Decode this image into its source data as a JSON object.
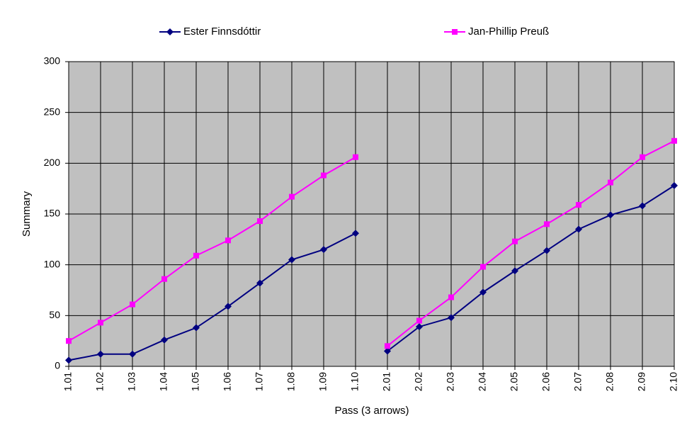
{
  "chart_data": {
    "type": "line",
    "x_label": "Pass (3 arrows)",
    "y_label": "Summary",
    "categories": [
      "1.01",
      "1.02",
      "1.03",
      "1.04",
      "1.05",
      "1.06",
      "1.07",
      "1.08",
      "1.09",
      "1.10",
      "2.01",
      "2.02",
      "2.03",
      "2.04",
      "2.05",
      "2.06",
      "2.07",
      "2.08",
      "2.09",
      "2.10"
    ],
    "segments": [
      10,
      10
    ],
    "series": [
      {
        "name": "Ester Finnsdóttir",
        "color": "#000080",
        "marker": "diamond",
        "values": [
          6,
          12,
          12,
          26,
          38,
          59,
          82,
          105,
          115,
          131,
          15,
          39,
          48,
          73,
          94,
          114,
          135,
          149,
          158,
          178
        ]
      },
      {
        "name": "Jan-Phillip Preuß",
        "color": "#ff00ff",
        "marker": "square",
        "values": [
          25,
          43,
          61,
          86,
          109,
          124,
          143,
          167,
          188,
          206,
          20,
          45,
          68,
          98,
          123,
          140,
          159,
          181,
          206,
          222
        ]
      }
    ],
    "ylim": [
      0,
      300
    ],
    "yticks": [
      0,
      50,
      100,
      150,
      200,
      250,
      300
    ],
    "grid": true,
    "plot_background": "#c0c0c0",
    "legend": "top"
  }
}
